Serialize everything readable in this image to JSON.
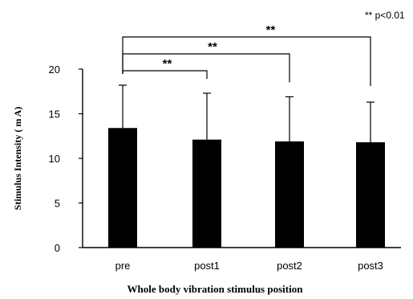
{
  "chart_data": {
    "type": "bar",
    "categories": [
      "pre",
      "post1",
      "post2",
      "post3"
    ],
    "values": [
      13.4,
      12.1,
      11.9,
      11.8
    ],
    "errors": [
      4.8,
      5.2,
      5.0,
      4.5
    ],
    "xlabel": "Whole body vibration stimulus position",
    "ylabel": "Stimulus Intensity ( m A)",
    "ylim": [
      0,
      20
    ],
    "yticks": [
      "0",
      "5",
      "10",
      "15",
      "20"
    ],
    "grid": false,
    "legend_note": "** p<0.01",
    "significance": [
      {
        "from": "pre",
        "to": "post1",
        "label": "**"
      },
      {
        "from": "pre",
        "to": "post2",
        "label": "**"
      },
      {
        "from": "pre",
        "to": "post3",
        "label": "**"
      }
    ]
  }
}
